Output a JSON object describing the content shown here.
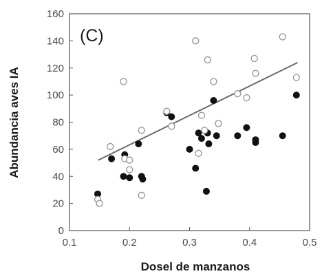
{
  "chart_data": {
    "type": "scatter",
    "panel_label": "(C)",
    "xlabel": "Dosel de manzanos",
    "ylabel": "Abundancia aves IA",
    "xlim": [
      0.1,
      0.5
    ],
    "ylim": [
      0,
      160
    ],
    "x_ticks": [
      0.1,
      0.2,
      0.3,
      0.4,
      0.5
    ],
    "x_tick_labels": [
      "0.1",
      "0.2",
      "0.3",
      "0.4",
      "0.5"
    ],
    "y_ticks": [
      0,
      20,
      40,
      60,
      80,
      100,
      120,
      140,
      160
    ],
    "y_tick_labels": [
      "0",
      "20",
      "40",
      "60",
      "80",
      "100",
      "120",
      "140",
      "160"
    ],
    "grid": false,
    "series": [
      {
        "marker": "filled",
        "color": "#111111",
        "points": [
          [
            0.147,
            27
          ],
          [
            0.17,
            53
          ],
          [
            0.19,
            40
          ],
          [
            0.192,
            56
          ],
          [
            0.2,
            39
          ],
          [
            0.215,
            64
          ],
          [
            0.22,
            40
          ],
          [
            0.222,
            38
          ],
          [
            0.262,
            87
          ],
          [
            0.27,
            84
          ],
          [
            0.3,
            60
          ],
          [
            0.31,
            46
          ],
          [
            0.315,
            72
          ],
          [
            0.32,
            68
          ],
          [
            0.328,
            29
          ],
          [
            0.33,
            72
          ],
          [
            0.332,
            64
          ],
          [
            0.34,
            96
          ],
          [
            0.345,
            70
          ],
          [
            0.38,
            70
          ],
          [
            0.395,
            76
          ],
          [
            0.41,
            67
          ],
          [
            0.41,
            65
          ],
          [
            0.455,
            70
          ],
          [
            0.478,
            100
          ]
        ]
      },
      {
        "marker": "open",
        "color": "#999999",
        "points": [
          [
            0.147,
            23
          ],
          [
            0.15,
            20
          ],
          [
            0.168,
            62
          ],
          [
            0.19,
            110
          ],
          [
            0.192,
            53
          ],
          [
            0.2,
            45
          ],
          [
            0.2,
            52
          ],
          [
            0.22,
            26
          ],
          [
            0.22,
            74
          ],
          [
            0.262,
            88
          ],
          [
            0.27,
            77
          ],
          [
            0.31,
            140
          ],
          [
            0.315,
            57
          ],
          [
            0.32,
            85
          ],
          [
            0.325,
            74
          ],
          [
            0.33,
            126
          ],
          [
            0.34,
            110
          ],
          [
            0.348,
            79
          ],
          [
            0.38,
            101
          ],
          [
            0.395,
            98
          ],
          [
            0.408,
            127
          ],
          [
            0.41,
            116
          ],
          [
            0.455,
            143
          ],
          [
            0.478,
            113
          ]
        ]
      }
    ],
    "trendline": {
      "color": "#6b6b6b",
      "points": [
        [
          0.148,
          52
        ],
        [
          0.48,
          124
        ]
      ]
    },
    "colors": {
      "axis": "#555555",
      "filled_marker": "#111111",
      "open_marker": "#999999",
      "trendline": "#6b6b6b"
    }
  }
}
